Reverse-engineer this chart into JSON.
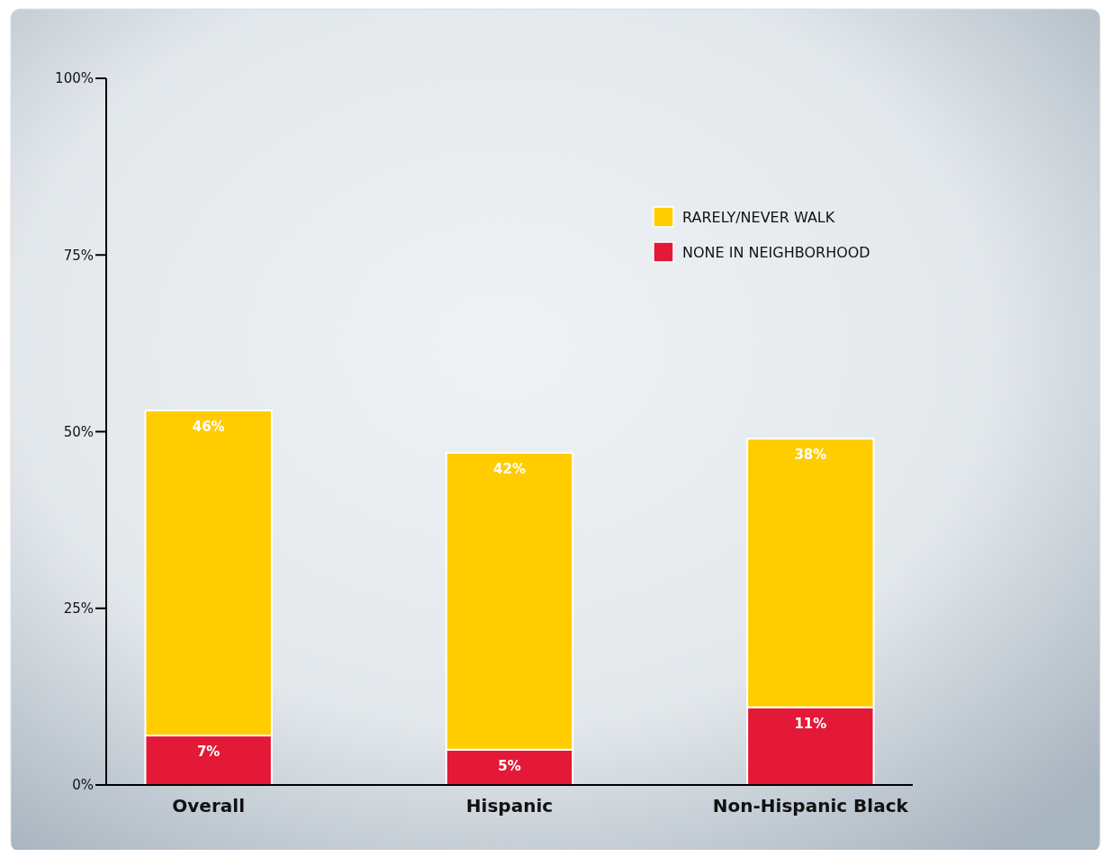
{
  "chart_data": {
    "type": "bar",
    "stacked": true,
    "categories": [
      "Overall",
      "Hispanic",
      "Non-Hispanic Black"
    ],
    "series": [
      {
        "name": "NONE IN NEIGHBORHOOD",
        "color": "#e31937",
        "values": [
          7,
          5,
          11
        ],
        "value_labels": [
          "7%",
          "5%",
          "11%"
        ]
      },
      {
        "name": "RARELY/NEVER WALK",
        "color": "#ffcc00",
        "values": [
          46,
          42,
          38
        ],
        "value_labels": [
          "46%",
          "42%",
          "38%"
        ]
      }
    ],
    "ylim": [
      0,
      100
    ],
    "yticks": [
      {
        "value": 0,
        "label": "0%"
      },
      {
        "value": 25,
        "label": "25%"
      },
      {
        "value": 50,
        "label": "50%"
      },
      {
        "value": 75,
        "label": "75%"
      },
      {
        "value": 100,
        "label": "100%"
      }
    ],
    "legend": "top right"
  }
}
